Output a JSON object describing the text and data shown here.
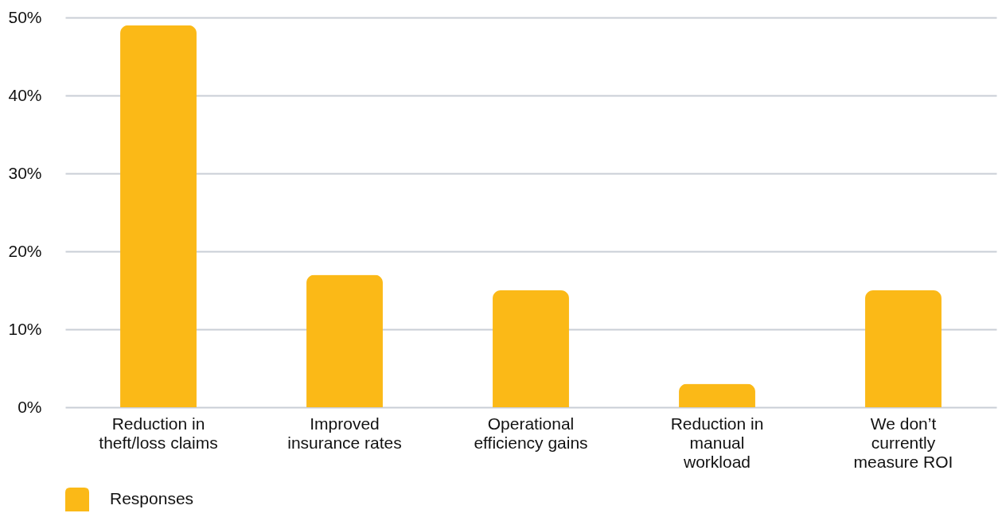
{
  "chart_data": {
    "type": "bar",
    "categories": [
      "Reduction in theft/loss claims",
      "Improved insurance rates",
      "Operational efficiency gains",
      "Reduction in manual workload",
      "We don’t currently measure ROI"
    ],
    "series": [
      {
        "name": "Responses",
        "color": "#fbb917",
        "values": [
          49,
          17,
          15,
          3,
          15
        ]
      }
    ],
    "ylim": [
      0,
      50
    ],
    "yticks": [
      {
        "value": 0,
        "label": "0%"
      },
      {
        "value": 10,
        "label": "10%"
      },
      {
        "value": 20,
        "label": "20%"
      },
      {
        "value": 30,
        "label": "30%"
      },
      {
        "value": 40,
        "label": "40%"
      },
      {
        "value": 50,
        "label": "50%"
      }
    ],
    "grid": "y",
    "legend": "bottom left"
  }
}
